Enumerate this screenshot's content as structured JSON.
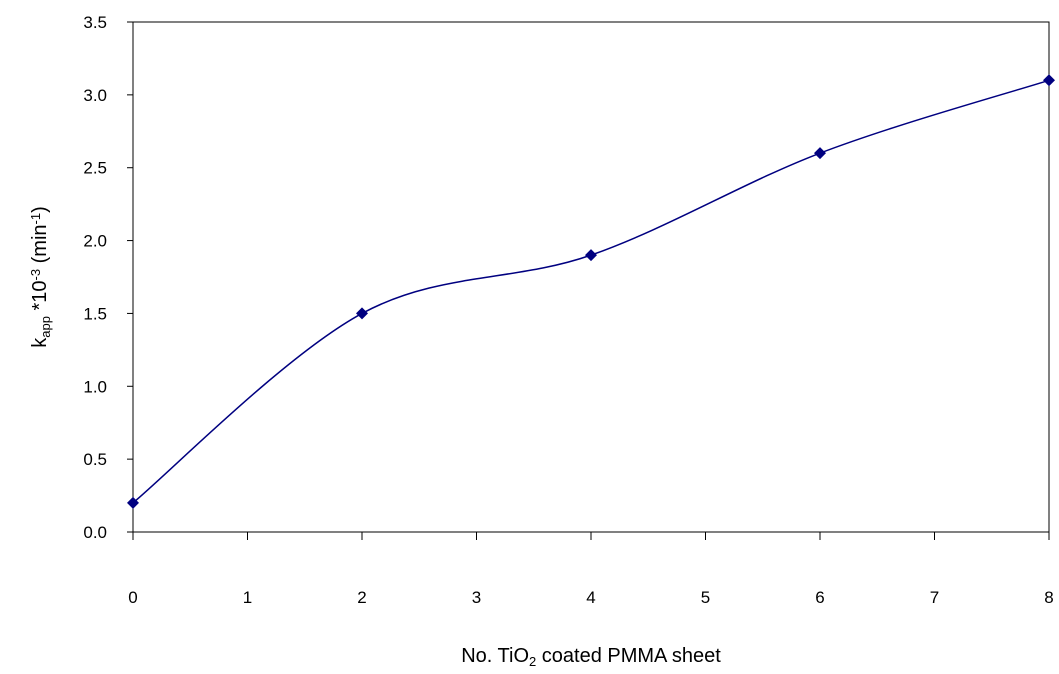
{
  "chart_data": {
    "type": "line",
    "x_label": [
      "No. TiO",
      "2",
      " coated PMMA sheet"
    ],
    "y_label": [
      "k",
      "app",
      " *10",
      "-3",
      " (min",
      "-1",
      ")"
    ],
    "x": [
      0,
      2,
      4,
      6,
      8
    ],
    "series": [
      {
        "color": "#000080",
        "values": [
          0.2,
          1.5,
          1.9,
          2.6,
          3.1
        ]
      }
    ],
    "xlim": [
      0,
      8
    ],
    "xticks": [
      0,
      1,
      2,
      3,
      4,
      5,
      6,
      7,
      8
    ],
    "ylim": [
      0,
      3.5
    ],
    "yticks": [
      {
        "value": 0,
        "label": "0.0"
      },
      0.5,
      {
        "value": 1,
        "label": "1.0"
      },
      1.5,
      {
        "value": 2,
        "label": "2.0"
      },
      2.5,
      {
        "value": 3,
        "label": "3.0"
      },
      3.5
    ],
    "smooth": true,
    "marker": "diamond"
  }
}
